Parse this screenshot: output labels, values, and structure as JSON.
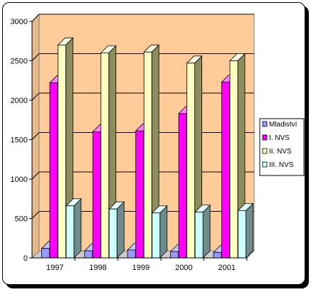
{
  "chart_data": {
    "type": "bar",
    "categories": [
      "1997",
      "1998",
      "1999",
      "2000",
      "2001"
    ],
    "series": [
      {
        "name": "Mladiství",
        "values": [
          120,
          90,
          100,
          80,
          70
        ],
        "color": "#9999ff",
        "side": "#6b6bb3",
        "top": "#c4c4ff"
      },
      {
        "name": "I. NVS",
        "values": [
          2220,
          1600,
          1610,
          1830,
          2230
        ],
        "color": "#ff00ff",
        "side": "#a800a8",
        "top": "#ff80ff"
      },
      {
        "name": "II. NVS",
        "values": [
          2700,
          2600,
          2610,
          2470,
          2500
        ],
        "color": "#ffffc0",
        "side": "#8c8c5c",
        "top": "#ffffe6"
      },
      {
        "name": "III. NVS",
        "values": [
          660,
          620,
          570,
          580,
          600
        ],
        "color": "#ccffff",
        "side": "#6e8c8c",
        "top": "#e6ffff"
      }
    ],
    "ylim": [
      0,
      3000
    ],
    "yticks": [
      0,
      500,
      1000,
      1500,
      2000,
      2500,
      3000
    ],
    "grid": true,
    "legend_position": "right",
    "plot_background": "#ffcc99"
  }
}
